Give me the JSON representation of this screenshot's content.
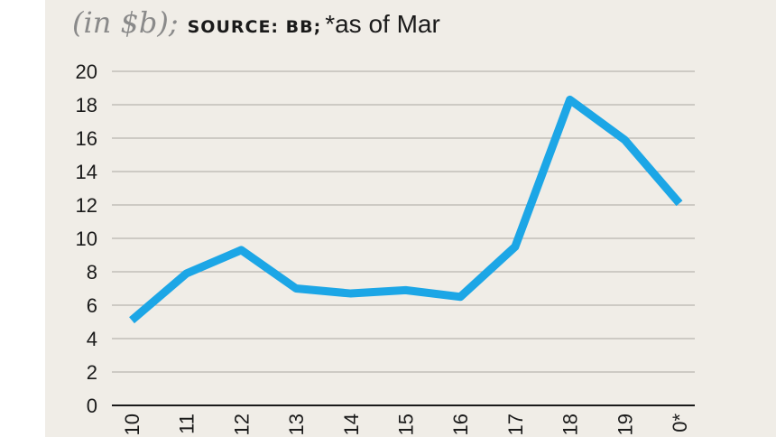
{
  "header": {
    "unit": "(in $b);",
    "source": "SOURCE: BB;",
    "note": "*as of Mar"
  },
  "chart_data": {
    "type": "line",
    "title": "",
    "xlabel": "",
    "ylabel": "",
    "categories": [
      "10",
      "11",
      "12",
      "13",
      "14",
      "15",
      "16",
      "17",
      "18",
      "19",
      "0*"
    ],
    "series": [
      {
        "values": [
          5.1,
          7.9,
          9.3,
          7.0,
          6.7,
          6.9,
          6.5,
          9.5,
          18.3,
          15.9,
          12.1
        ]
      }
    ],
    "ylim": [
      0,
      20
    ],
    "yticks": [
      "0",
      "2",
      "4",
      "6",
      "8",
      "10",
      "12",
      "14",
      "16",
      "18",
      "20"
    ],
    "grid": true,
    "line_color": "#1ca6e6",
    "grid_color": "#b8b5ae"
  }
}
